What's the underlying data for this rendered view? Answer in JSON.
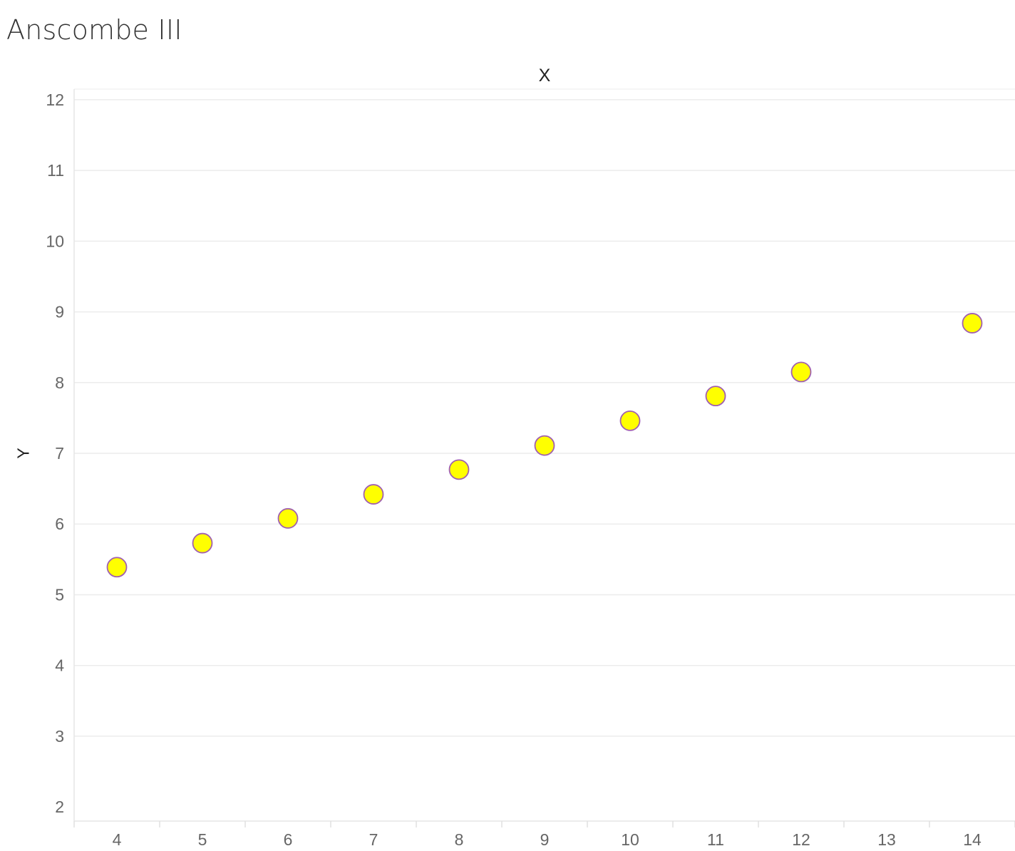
{
  "chart_data": {
    "type": "scatter",
    "title": "Anscombe III",
    "xlabel": "X",
    "ylabel": "Y",
    "xlim": [
      3.5,
      14.5
    ],
    "ylim": [
      1.8,
      12.15
    ],
    "x_ticks": [
      "4",
      "5",
      "6",
      "7",
      "8",
      "9",
      "10",
      "11",
      "12",
      "13",
      "14"
    ],
    "y_ticks": [
      "2",
      "3",
      "4",
      "5",
      "6",
      "7",
      "8",
      "9",
      "10",
      "11",
      "12"
    ],
    "grid": true,
    "legend": "none",
    "points": [
      {
        "x": 4,
        "y": 5.39
      },
      {
        "x": 5,
        "y": 5.73
      },
      {
        "x": 6,
        "y": 6.08
      },
      {
        "x": 7,
        "y": 6.42
      },
      {
        "x": 8,
        "y": 6.77
      },
      {
        "x": 9,
        "y": 7.11
      },
      {
        "x": 10,
        "y": 7.46
      },
      {
        "x": 11,
        "y": 7.81
      },
      {
        "x": 12,
        "y": 8.15
      },
      {
        "x": 14,
        "y": 8.84
      }
    ],
    "marker_fill": "#ffff00",
    "marker_stroke": "#a05fb0",
    "grid_color": "#ececec"
  }
}
